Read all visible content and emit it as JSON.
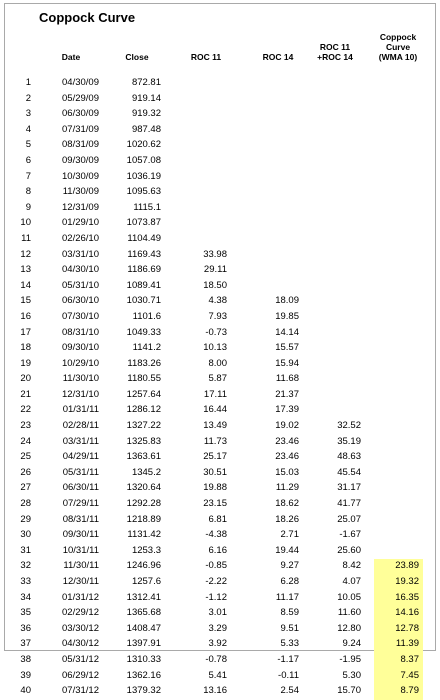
{
  "title": "Coppock Curve",
  "headers": {
    "date": "Date",
    "close": "Close",
    "roc11": "ROC 11",
    "roc14": "ROC 14",
    "sum_line1": "ROC 11",
    "sum_line2": "+ROC 14",
    "wma_line1": "Coppock",
    "wma_line2": "Curve",
    "wma_line3": "(WMA 10)"
  },
  "highlight_color": "#ffff99",
  "rows": [
    {
      "n": "1",
      "date": "04/30/09",
      "close": "872.81",
      "roc11": "",
      "roc14": "",
      "sum": "",
      "wma": ""
    },
    {
      "n": "2",
      "date": "05/29/09",
      "close": "919.14",
      "roc11": "",
      "roc14": "",
      "sum": "",
      "wma": ""
    },
    {
      "n": "3",
      "date": "06/30/09",
      "close": "919.32",
      "roc11": "",
      "roc14": "",
      "sum": "",
      "wma": ""
    },
    {
      "n": "4",
      "date": "07/31/09",
      "close": "987.48",
      "roc11": "",
      "roc14": "",
      "sum": "",
      "wma": ""
    },
    {
      "n": "5",
      "date": "08/31/09",
      "close": "1020.62",
      "roc11": "",
      "roc14": "",
      "sum": "",
      "wma": ""
    },
    {
      "n": "6",
      "date": "09/30/09",
      "close": "1057.08",
      "roc11": "",
      "roc14": "",
      "sum": "",
      "wma": ""
    },
    {
      "n": "7",
      "date": "10/30/09",
      "close": "1036.19",
      "roc11": "",
      "roc14": "",
      "sum": "",
      "wma": ""
    },
    {
      "n": "8",
      "date": "11/30/09",
      "close": "1095.63",
      "roc11": "",
      "roc14": "",
      "sum": "",
      "wma": ""
    },
    {
      "n": "9",
      "date": "12/31/09",
      "close": "1115.1",
      "roc11": "",
      "roc14": "",
      "sum": "",
      "wma": ""
    },
    {
      "n": "10",
      "date": "01/29/10",
      "close": "1073.87",
      "roc11": "",
      "roc14": "",
      "sum": "",
      "wma": ""
    },
    {
      "n": "11",
      "date": "02/26/10",
      "close": "1104.49",
      "roc11": "",
      "roc14": "",
      "sum": "",
      "wma": ""
    },
    {
      "n": "12",
      "date": "03/31/10",
      "close": "1169.43",
      "roc11": "33.98",
      "roc14": "",
      "sum": "",
      "wma": ""
    },
    {
      "n": "13",
      "date": "04/30/10",
      "close": "1186.69",
      "roc11": "29.11",
      "roc14": "",
      "sum": "",
      "wma": ""
    },
    {
      "n": "14",
      "date": "05/31/10",
      "close": "1089.41",
      "roc11": "18.50",
      "roc14": "",
      "sum": "",
      "wma": ""
    },
    {
      "n": "15",
      "date": "06/30/10",
      "close": "1030.71",
      "roc11": "4.38",
      "roc14": "18.09",
      "sum": "",
      "wma": ""
    },
    {
      "n": "16",
      "date": "07/30/10",
      "close": "1101.6",
      "roc11": "7.93",
      "roc14": "19.85",
      "sum": "",
      "wma": ""
    },
    {
      "n": "17",
      "date": "08/31/10",
      "close": "1049.33",
      "roc11": "-0.73",
      "roc14": "14.14",
      "sum": "",
      "wma": ""
    },
    {
      "n": "18",
      "date": "09/30/10",
      "close": "1141.2",
      "roc11": "10.13",
      "roc14": "15.57",
      "sum": "",
      "wma": ""
    },
    {
      "n": "19",
      "date": "10/29/10",
      "close": "1183.26",
      "roc11": "8.00",
      "roc14": "15.94",
      "sum": "",
      "wma": ""
    },
    {
      "n": "20",
      "date": "11/30/10",
      "close": "1180.55",
      "roc11": "5.87",
      "roc14": "11.68",
      "sum": "",
      "wma": ""
    },
    {
      "n": "21",
      "date": "12/31/10",
      "close": "1257.64",
      "roc11": "17.11",
      "roc14": "21.37",
      "sum": "",
      "wma": ""
    },
    {
      "n": "22",
      "date": "01/31/11",
      "close": "1286.12",
      "roc11": "16.44",
      "roc14": "17.39",
      "sum": "",
      "wma": ""
    },
    {
      "n": "23",
      "date": "02/28/11",
      "close": "1327.22",
      "roc11": "13.49",
      "roc14": "19.02",
      "sum": "32.52",
      "wma": ""
    },
    {
      "n": "24",
      "date": "03/31/11",
      "close": "1325.83",
      "roc11": "11.73",
      "roc14": "23.46",
      "sum": "35.19",
      "wma": ""
    },
    {
      "n": "25",
      "date": "04/29/11",
      "close": "1363.61",
      "roc11": "25.17",
      "roc14": "23.46",
      "sum": "48.63",
      "wma": ""
    },
    {
      "n": "26",
      "date": "05/31/11",
      "close": "1345.2",
      "roc11": "30.51",
      "roc14": "15.03",
      "sum": "45.54",
      "wma": ""
    },
    {
      "n": "27",
      "date": "06/30/11",
      "close": "1320.64",
      "roc11": "19.88",
      "roc14": "11.29",
      "sum": "31.17",
      "wma": ""
    },
    {
      "n": "28",
      "date": "07/29/11",
      "close": "1292.28",
      "roc11": "23.15",
      "roc14": "18.62",
      "sum": "41.77",
      "wma": ""
    },
    {
      "n": "29",
      "date": "08/31/11",
      "close": "1218.89",
      "roc11": "6.81",
      "roc14": "18.26",
      "sum": "25.07",
      "wma": ""
    },
    {
      "n": "30",
      "date": "09/30/11",
      "close": "1131.42",
      "roc11": "-4.38",
      "roc14": "2.71",
      "sum": "-1.67",
      "wma": ""
    },
    {
      "n": "31",
      "date": "10/31/11",
      "close": "1253.3",
      "roc11": "6.16",
      "roc14": "19.44",
      "sum": "25.60",
      "wma": ""
    },
    {
      "n": "32",
      "date": "11/30/11",
      "close": "1246.96",
      "roc11": "-0.85",
      "roc14": "9.27",
      "sum": "8.42",
      "wma": "23.89"
    },
    {
      "n": "33",
      "date": "12/30/11",
      "close": "1257.6",
      "roc11": "-2.22",
      "roc14": "6.28",
      "sum": "4.07",
      "wma": "19.32"
    },
    {
      "n": "34",
      "date": "01/31/12",
      "close": "1312.41",
      "roc11": "-1.12",
      "roc14": "11.17",
      "sum": "10.05",
      "wma": "16.35"
    },
    {
      "n": "35",
      "date": "02/29/12",
      "close": "1365.68",
      "roc11": "3.01",
      "roc14": "8.59",
      "sum": "11.60",
      "wma": "14.16"
    },
    {
      "n": "36",
      "date": "03/30/12",
      "close": "1408.47",
      "roc11": "3.29",
      "roc14": "9.51",
      "sum": "12.80",
      "wma": "12.78"
    },
    {
      "n": "37",
      "date": "04/30/12",
      "close": "1397.91",
      "roc11": "3.92",
      "roc14": "5.33",
      "sum": "9.24",
      "wma": "11.39"
    },
    {
      "n": "38",
      "date": "05/31/12",
      "close": "1310.33",
      "roc11": "-0.78",
      "roc14": "-1.17",
      "sum": "-1.95",
      "wma": "8.37"
    },
    {
      "n": "39",
      "date": "06/29/12",
      "close": "1362.16",
      "roc11": "5.41",
      "roc14": "-0.11",
      "sum": "5.30",
      "wma": "7.45"
    },
    {
      "n": "40",
      "date": "07/31/12",
      "close": "1379.32",
      "roc11": "13.16",
      "roc14": "2.54",
      "sum": "15.70",
      "wma": "8.79"
    }
  ]
}
